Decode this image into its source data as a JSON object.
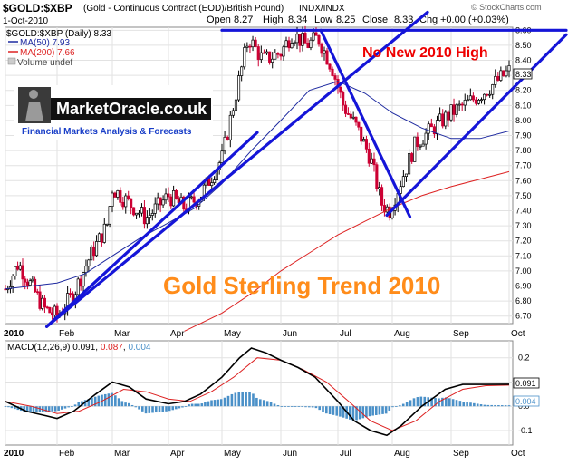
{
  "header": {
    "symbol": "$GOLD:$XBP",
    "description": "(Gold - Continuous Contract (EOD)/British Pound)",
    "exchange": "INDX/INDX",
    "date": "1-Oct-2010",
    "open_label": "Open",
    "open": "8.27",
    "high_label": "High",
    "high": "8.34",
    "low_label": "Low",
    "low": "8.25",
    "close_label": "Close",
    "close": "8.33",
    "chg_label": "Chg",
    "chg": "+0.00 (+0.03%)",
    "watermark": "© StockCharts.com"
  },
  "legend": {
    "main_title": "$GOLD:$XBP (Daily) 8.33",
    "ma50": "MA(50) 7.93",
    "ma200": "MA(200) 7.66",
    "volume": "Volume undef"
  },
  "logo": {
    "name": "MarketOracle.co.uk",
    "tagline": "Financial Markets Analysis & Forecasts"
  },
  "annotations": {
    "no_new_high": "No New 2010 High",
    "trend_title": "Gold Sterling Trend 2010"
  },
  "macd": {
    "label_prefix": "MACD(12,26,9)",
    "macd_value": "0.091",
    "signal_value": "0.087",
    "hist_value": "0.004",
    "badge_macd": "0.091",
    "badge_hist": "0.004"
  },
  "colors": {
    "price_up": "#000000",
    "price_down": "#cc0033",
    "ma50": "#1e2aa0",
    "ma200": "#dd2222",
    "trendline": "#1515d8",
    "annotation_red": "#ee0000",
    "annotation_orange": "#ff8c1a",
    "macd_line": "#000000",
    "signal_line": "#dd2222",
    "histogram": "#4a90c8"
  },
  "chart_data": [
    {
      "type": "line",
      "name": "price",
      "x": [
        "2010",
        "Feb",
        "Mar",
        "Apr",
        "May",
        "Jun",
        "Jul",
        "Aug",
        "Sep",
        "Oct"
      ],
      "y_ticks": [
        "6.70",
        "6.80",
        "6.90",
        "7.00",
        "7.10",
        "7.20",
        "7.30",
        "7.40",
        "7.50",
        "7.60",
        "7.70",
        "7.80",
        "7.90",
        "8.00",
        "8.10",
        "8.20",
        "8.30",
        "8.40",
        "8.50",
        "8.60"
      ],
      "ylim": [
        6.65,
        8.62
      ],
      "price_anchors": [
        [
          0.0,
          6.88
        ],
        [
          0.25,
          7.05
        ],
        [
          0.5,
          6.9
        ],
        [
          0.75,
          6.75
        ],
        [
          1.0,
          6.7
        ],
        [
          1.3,
          6.85
        ],
        [
          1.6,
          7.1
        ],
        [
          1.9,
          7.3
        ],
        [
          2.0,
          7.55
        ],
        [
          2.3,
          7.45
        ],
        [
          2.6,
          7.35
        ],
        [
          3.0,
          7.5
        ],
        [
          3.3,
          7.42
        ],
        [
          3.6,
          7.5
        ],
        [
          4.0,
          7.75
        ],
        [
          4.25,
          8.2
        ],
        [
          4.45,
          8.55
        ],
        [
          4.7,
          8.4
        ],
        [
          5.0,
          8.45
        ],
        [
          5.2,
          8.58
        ],
        [
          5.45,
          8.5
        ],
        [
          5.65,
          8.55
        ],
        [
          5.9,
          8.35
        ],
        [
          6.1,
          8.1
        ],
        [
          6.35,
          7.95
        ],
        [
          6.6,
          7.75
        ],
        [
          6.8,
          7.45
        ],
        [
          6.95,
          7.4
        ],
        [
          7.1,
          7.55
        ],
        [
          7.4,
          7.85
        ],
        [
          7.7,
          7.95
        ],
        [
          8.0,
          8.05
        ],
        [
          8.3,
          8.12
        ],
        [
          8.6,
          8.2
        ],
        [
          8.85,
          8.28
        ],
        [
          9.0,
          8.33
        ]
      ],
      "ma50": [
        [
          0.0,
          6.88
        ],
        [
          0.5,
          6.9
        ],
        [
          1.0,
          6.92
        ],
        [
          1.5,
          6.98
        ],
        [
          2.0,
          7.1
        ],
        [
          2.5,
          7.22
        ],
        [
          3.0,
          7.32
        ],
        [
          3.5,
          7.42
        ],
        [
          4.0,
          7.58
        ],
        [
          4.5,
          7.8
        ],
        [
          5.0,
          8.0
        ],
        [
          5.5,
          8.2
        ],
        [
          6.0,
          8.26
        ],
        [
          6.5,
          8.18
        ],
        [
          7.0,
          8.05
        ],
        [
          7.5,
          7.95
        ],
        [
          8.0,
          7.88
        ],
        [
          8.5,
          7.88
        ],
        [
          9.0,
          7.93
        ]
      ],
      "ma200": [
        [
          3.3,
          6.6
        ],
        [
          4.0,
          6.72
        ],
        [
          4.5,
          6.85
        ],
        [
          5.0,
          7.0
        ],
        [
          5.5,
          7.12
        ],
        [
          6.0,
          7.24
        ],
        [
          6.5,
          7.33
        ],
        [
          7.0,
          7.42
        ],
        [
          7.5,
          7.5
        ],
        [
          8.0,
          7.56
        ],
        [
          8.5,
          7.61
        ],
        [
          9.0,
          7.66
        ]
      ],
      "trendlines": [
        [
          [
            0.8,
            6.63
          ],
          [
            7.6,
            8.72
          ]
        ],
        [
          [
            0.8,
            6.63
          ],
          [
            4.6,
            7.92
          ]
        ],
        [
          [
            5.7,
            8.6
          ],
          [
            7.3,
            7.36
          ]
        ],
        [
          [
            6.9,
            7.37
          ],
          [
            10.0,
            8.57
          ]
        ],
        [
          [
            4.0,
            8.6
          ],
          [
            10.0,
            8.6
          ]
        ]
      ]
    },
    {
      "type": "line",
      "name": "MACD(12,26,9)",
      "x": [
        "2010",
        "Feb",
        "Mar",
        "Apr",
        "May",
        "Jun",
        "Jul",
        "Aug",
        "Sep",
        "Oct"
      ],
      "y_ticks": [
        "0.2",
        "0.1",
        "0.0",
        "-0.1"
      ],
      "ylim": [
        -0.16,
        0.27
      ],
      "macd": [
        [
          0.0,
          0.02
        ],
        [
          0.4,
          -0.02
        ],
        [
          0.8,
          -0.04
        ],
        [
          1.0,
          -0.05
        ],
        [
          1.3,
          -0.02
        ],
        [
          1.7,
          0.05
        ],
        [
          2.0,
          0.1
        ],
        [
          2.3,
          0.08
        ],
        [
          2.6,
          0.03
        ],
        [
          3.0,
          0.01
        ],
        [
          3.3,
          0.02
        ],
        [
          3.6,
          0.05
        ],
        [
          4.0,
          0.12
        ],
        [
          4.3,
          0.2
        ],
        [
          4.5,
          0.24
        ],
        [
          4.75,
          0.22
        ],
        [
          5.0,
          0.19
        ],
        [
          5.3,
          0.16
        ],
        [
          5.6,
          0.12
        ],
        [
          6.0,
          0.02
        ],
        [
          6.3,
          -0.06
        ],
        [
          6.6,
          -0.1
        ],
        [
          6.9,
          -0.12
        ],
        [
          7.15,
          -0.08
        ],
        [
          7.5,
          0.0
        ],
        [
          7.9,
          0.07
        ],
        [
          8.2,
          0.09
        ],
        [
          8.6,
          0.09
        ],
        [
          9.0,
          0.091
        ]
      ],
      "signal": [
        [
          0.0,
          0.02
        ],
        [
          0.5,
          0.0
        ],
        [
          1.0,
          -0.03
        ],
        [
          1.4,
          -0.02
        ],
        [
          1.8,
          0.02
        ],
        [
          2.2,
          0.07
        ],
        [
          2.6,
          0.06
        ],
        [
          3.0,
          0.03
        ],
        [
          3.4,
          0.02
        ],
        [
          3.8,
          0.06
        ],
        [
          4.2,
          0.12
        ],
        [
          4.6,
          0.2
        ],
        [
          5.0,
          0.19
        ],
        [
          5.4,
          0.15
        ],
        [
          5.8,
          0.1
        ],
        [
          6.2,
          0.02
        ],
        [
          6.6,
          -0.06
        ],
        [
          7.0,
          -0.1
        ],
        [
          7.4,
          -0.06
        ],
        [
          7.8,
          0.02
        ],
        [
          8.2,
          0.07
        ],
        [
          8.6,
          0.085
        ],
        [
          9.0,
          0.087
        ]
      ]
    }
  ]
}
